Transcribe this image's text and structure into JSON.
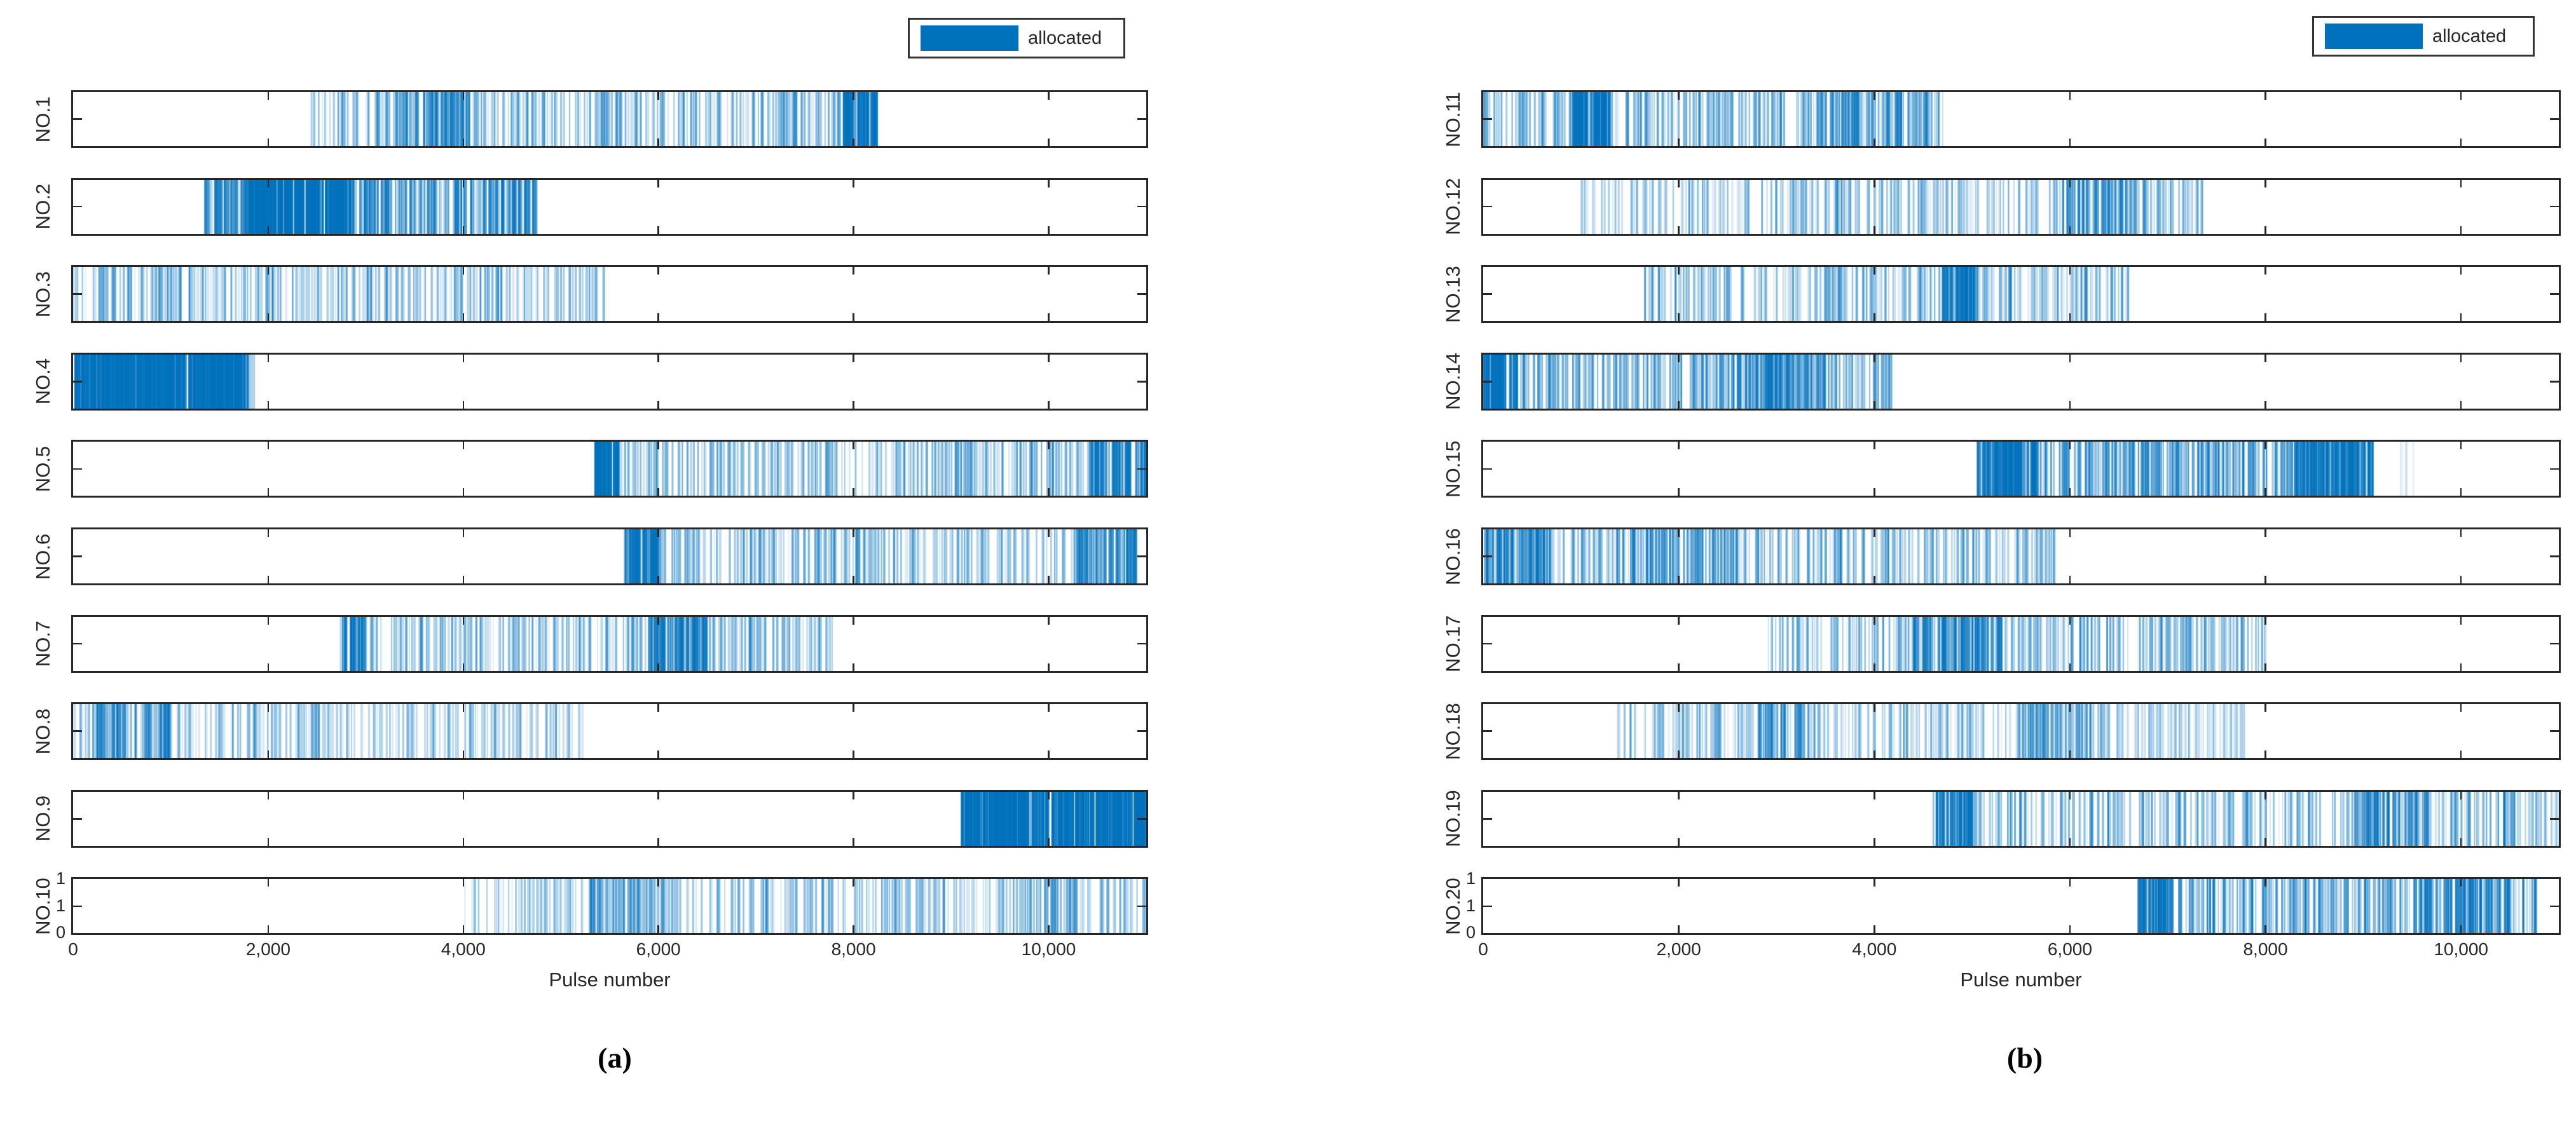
{
  "colors": {
    "allocated": "#0072BD",
    "axis": "#262626",
    "text": "#262626"
  },
  "chart_data": {
    "type": "event-strips",
    "description": "Pulse allocation raster: vertical blue lines mark allocated pulse numbers for each radiation source strip",
    "legend": {
      "label": "allocated",
      "color": "#0072BD",
      "position": "top-right"
    },
    "x_axis": {
      "label": "Pulse number",
      "min": 0,
      "max": 11000,
      "tick_values": [
        0,
        2000,
        4000,
        6000,
        8000,
        10000
      ],
      "tick_labels": [
        "0",
        "2,000",
        "4,000",
        "6,000",
        "8,000",
        "10,000"
      ]
    },
    "y_axis": {
      "strip_ylim": [
        0,
        1
      ],
      "last_strip_tick_labels_top_to_bottom": [
        "1",
        "1",
        "0"
      ]
    },
    "panels": [
      {
        "caption": "(a)",
        "strips": [
          {
            "label": "NO.1",
            "allocated_ranges": [
              [
                2400,
                8250
              ]
            ],
            "segments": [
              [
                2400,
                3300,
                60,
                0.1,
                0.45
              ],
              [
                3300,
                4100,
                110,
                0.15,
                0.75
              ],
              [
                4100,
                7900,
                240,
                0.1,
                0.5
              ],
              [
                7900,
                8250,
                80,
                0.25,
                0.9
              ]
            ]
          },
          {
            "label": "NO.2",
            "allocated_ranges": [
              [
                1350,
                4750
              ]
            ],
            "segments": [
              [
                1350,
                1800,
                70,
                0.2,
                0.7
              ],
              [
                1800,
                2850,
                280,
                0.55,
                1.0
              ],
              [
                2850,
                4750,
                200,
                0.18,
                0.75
              ]
            ]
          },
          {
            "label": "NO.3",
            "allocated_ranges": [
              [
                0,
                5450
              ]
            ],
            "segments": [
              [
                0,
                5450,
                280,
                0.08,
                0.4
              ],
              [
                100,
                5300,
                50,
                0.35,
                0.7
              ]
            ]
          },
          {
            "label": "NO.4",
            "allocated_ranges": [
              [
                0,
                1850
              ]
            ],
            "segments": [
              [
                0,
                1800,
                380,
                0.65,
                1.0
              ],
              [
                1790,
                1870,
                8,
                0.1,
                0.3
              ]
            ]
          },
          {
            "label": "NO.5",
            "allocated_ranges": [
              [
                5350,
                11000
              ]
            ],
            "segments": [
              [
                5350,
                5600,
                70,
                0.35,
                0.9
              ],
              [
                5600,
                10400,
                300,
                0.1,
                0.5
              ],
              [
                10400,
                11000,
                80,
                0.25,
                0.85
              ]
            ]
          },
          {
            "label": "NO.6",
            "allocated_ranges": [
              [
                5650,
                10900
              ]
            ],
            "segments": [
              [
                5650,
                6000,
                70,
                0.3,
                0.85
              ],
              [
                6000,
                10300,
                260,
                0.1,
                0.5
              ],
              [
                10300,
                10900,
                70,
                0.25,
                0.8
              ]
            ]
          },
          {
            "label": "NO.7",
            "allocated_ranges": [
              [
                2720,
                7800
              ]
            ],
            "segments": [
              [
                2720,
                7800,
                280,
                0.1,
                0.55
              ],
              [
                2750,
                3000,
                40,
                0.3,
                0.8
              ],
              [
                5900,
                6500,
                80,
                0.3,
                0.85
              ]
            ]
          },
          {
            "label": "NO.8",
            "allocated_ranges": [
              [
                0,
                5230
              ]
            ],
            "segments": [
              [
                0,
                5230,
                300,
                0.08,
                0.4
              ],
              [
                200,
                1000,
                60,
                0.3,
                0.7
              ]
            ]
          },
          {
            "label": "NO.9",
            "allocated_ranges": [
              [
                9100,
                11000
              ]
            ],
            "segments": [
              [
                9100,
                11000,
                360,
                0.65,
                1.0
              ]
            ]
          },
          {
            "label": "NO.10",
            "allocated_ranges": [
              [
                4000,
                11000
              ]
            ],
            "segments": [
              [
                4000,
                11000,
                340,
                0.1,
                0.45
              ],
              [
                5300,
                6200,
                50,
                0.22,
                0.6
              ],
              [
                9600,
                10300,
                40,
                0.22,
                0.6
              ]
            ]
          }
        ]
      },
      {
        "caption": "(b)",
        "strips": [
          {
            "label": "NO.11",
            "allocated_ranges": [
              [
                0,
                4700
              ]
            ],
            "segments": [
              [
                0,
                4700,
                300,
                0.12,
                0.55
              ],
              [
                900,
                1300,
                80,
                0.35,
                0.9
              ],
              [
                3400,
                4700,
                70,
                0.2,
                0.7
              ]
            ]
          },
          {
            "label": "NO.12",
            "allocated_ranges": [
              [
                1000,
                7370
              ]
            ],
            "segments": [
              [
                1000,
                7370,
                330,
                0.1,
                0.45
              ],
              [
                5900,
                6800,
                70,
                0.22,
                0.65
              ]
            ]
          },
          {
            "label": "NO.13",
            "allocated_ranges": [
              [
                1650,
                6600
              ]
            ],
            "segments": [
              [
                1650,
                6600,
                300,
                0.1,
                0.5
              ],
              [
                4700,
                5050,
                60,
                0.3,
                0.8
              ]
            ]
          },
          {
            "label": "NO.14",
            "allocated_ranges": [
              [
                0,
                4200
              ]
            ],
            "segments": [
              [
                0,
                4200,
                320,
                0.18,
                0.6
              ],
              [
                0,
                350,
                60,
                0.4,
                0.9
              ],
              [
                2500,
                3500,
                60,
                0.3,
                0.75
              ]
            ]
          },
          {
            "label": "NO.15",
            "allocated_ranges": [
              [
                5050,
                9600
              ]
            ],
            "segments": [
              [
                5050,
                9100,
                330,
                0.22,
                0.7
              ],
              [
                5050,
                5650,
                90,
                0.4,
                0.9
              ],
              [
                8300,
                9100,
                100,
                0.35,
                0.95
              ],
              [
                9350,
                9600,
                5,
                0.06,
                0.15
              ]
            ]
          },
          {
            "label": "NO.16",
            "allocated_ranges": [
              [
                0,
                5850
              ]
            ],
            "segments": [
              [
                0,
                5850,
                330,
                0.12,
                0.55
              ],
              [
                0,
                700,
                70,
                0.3,
                0.8
              ],
              [
                1500,
                2600,
                60,
                0.25,
                0.7
              ]
            ]
          },
          {
            "label": "NO.17",
            "allocated_ranges": [
              [
                2900,
                8000
              ]
            ],
            "segments": [
              [
                2900,
                8000,
                300,
                0.1,
                0.55
              ],
              [
                4400,
                5300,
                80,
                0.28,
                0.8
              ]
            ]
          },
          {
            "label": "NO.18",
            "allocated_ranges": [
              [
                1350,
                7800
              ]
            ],
            "segments": [
              [
                1350,
                7800,
                330,
                0.08,
                0.45
              ],
              [
                2800,
                3400,
                50,
                0.22,
                0.65
              ],
              [
                5500,
                6300,
                50,
                0.22,
                0.65
              ]
            ]
          },
          {
            "label": "NO.19",
            "allocated_ranges": [
              [
                4600,
                11000
              ]
            ],
            "segments": [
              [
                4600,
                11000,
                340,
                0.1,
                0.55
              ],
              [
                4600,
                5050,
                50,
                0.28,
                0.8
              ],
              [
                8900,
                9700,
                60,
                0.25,
                0.75
              ]
            ]
          },
          {
            "label": "NO.20",
            "allocated_ranges": [
              [
                6700,
                10800
              ]
            ],
            "segments": [
              [
                6700,
                10800,
                320,
                0.18,
                0.65
              ],
              [
                6700,
                7050,
                50,
                0.35,
                0.85
              ],
              [
                9800,
                10500,
                50,
                0.3,
                0.8
              ]
            ]
          }
        ]
      }
    ]
  }
}
